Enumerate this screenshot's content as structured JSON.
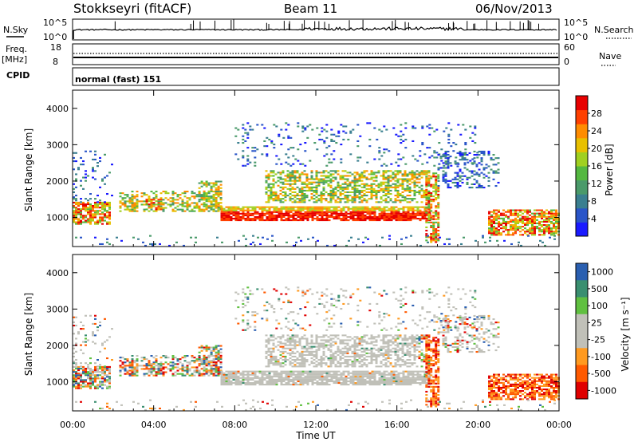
{
  "header": {
    "radar": "Stokkseyri (fitACF)",
    "beam": "Beam 11",
    "date": "06/Nov/2013"
  },
  "status_panels": {
    "nsky_label": "N.Sky",
    "nsky_ticks": [
      "10^5",
      "10^0"
    ],
    "nsearch_label": "N.Search",
    "nsearch_ticks": [
      "10^5",
      "10^0"
    ],
    "freq_label": "Freq.",
    "freq_unit": "[MHz]",
    "freq_ticks": [
      "18",
      "8"
    ],
    "nave_label": "Nave",
    "nave_ticks": [
      "60",
      "0"
    ],
    "cpid_label": "CPID",
    "cpid_value": "normal (fast) 151"
  },
  "colors": {
    "power": [
      "#1a1aff",
      "#2a55c8",
      "#3a7f90",
      "#4a9a6a",
      "#54b840",
      "#a0d020",
      "#e8c000",
      "#ff8c00",
      "#ff4000",
      "#e80000"
    ],
    "velocity": [
      "#e00000",
      "#ff5a00",
      "#ff9a20",
      "#c0c0b8",
      "#c0c0b8",
      "#60c040",
      "#3a8f70",
      "#2a5fb0"
    ]
  },
  "chart_data": [
    {
      "type": "heatmap",
      "name": "power",
      "ylabel": "Slant Range [km]",
      "xlim_hours": [
        0,
        24
      ],
      "ylim": [
        200,
        4500
      ],
      "yticks": [
        "1000",
        "2000",
        "3000",
        "4000"
      ],
      "colorbar_title": "Power [dB]",
      "colorbar_ticks": [
        "4",
        "8",
        "12",
        "16",
        "20",
        "24",
        "28"
      ],
      "colorbar_range": [
        0,
        32
      ],
      "grid": false
    },
    {
      "type": "heatmap",
      "name": "velocity",
      "ylabel": "Slant Range [km]",
      "xlabel": "Time UT",
      "xticks": [
        "00:00",
        "04:00",
        "08:00",
        "12:00",
        "16:00",
        "20:00",
        "00:00"
      ],
      "xlim_hours": [
        0,
        24
      ],
      "ylim": [
        200,
        4500
      ],
      "yticks": [
        "1000",
        "2000",
        "3000",
        "4000"
      ],
      "colorbar_title": "Velocity [m s⁻¹]",
      "colorbar_ticks": [
        "1000",
        "500",
        "100",
        "25",
        "-25",
        "-100",
        "-500",
        "-1000"
      ],
      "grid": false
    }
  ]
}
